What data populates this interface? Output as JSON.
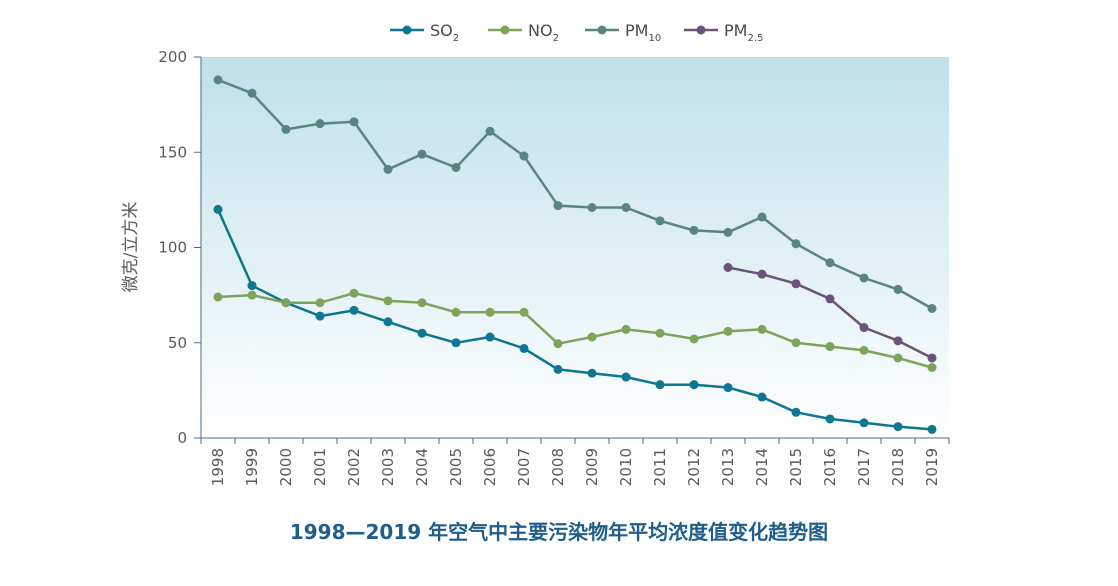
{
  "chart_data": {
    "type": "line",
    "title": "1998—2019 年空气中主要污染物年平均浓度值变化趋势图",
    "xlabel": "",
    "ylabel": "微克/立方米",
    "ylim": [
      0,
      200
    ],
    "yticks": [
      0,
      50,
      100,
      150,
      200
    ],
    "x": [
      1998,
      1999,
      2000,
      2001,
      2002,
      2003,
      2004,
      2005,
      2006,
      2007,
      2008,
      2009,
      2010,
      2011,
      2012,
      2013,
      2014,
      2015,
      2016,
      2017,
      2018,
      2019
    ],
    "legend_position": "top-center",
    "series": [
      {
        "name": "SO",
        "sub": "2",
        "color": "#0e7691",
        "values": [
          120,
          80,
          71,
          64,
          67,
          61,
          55,
          50,
          53,
          47,
          36,
          34,
          32,
          28,
          28,
          26.5,
          21.5,
          13.5,
          10,
          8,
          6,
          4.5
        ]
      },
      {
        "name": "NO",
        "sub": "2",
        "color": "#7ca45a",
        "values": [
          74,
          75,
          71,
          71,
          76,
          72,
          71,
          66,
          66,
          66,
          49.5,
          53,
          57,
          55,
          52,
          56,
          57,
          50,
          48,
          46,
          42,
          37
        ]
      },
      {
        "name": "PM",
        "sub": "10",
        "color": "#5a847f",
        "values": [
          188,
          181,
          162,
          165,
          166,
          141,
          149,
          142,
          161,
          148,
          122,
          121,
          121,
          114,
          109,
          108,
          116,
          102,
          92,
          84,
          78,
          68
        ]
      },
      {
        "name": "PM",
        "sub": "2.5",
        "color": "#6a5478",
        "values": [
          null,
          null,
          null,
          null,
          null,
          null,
          null,
          null,
          null,
          null,
          null,
          null,
          null,
          null,
          null,
          89.5,
          86,
          81,
          73,
          58,
          51,
          42
        ]
      }
    ],
    "colors": {
      "plot_top": "#bfe0ea",
      "plot_bottom": "#ffffff",
      "axis": "#4a6a8a",
      "title": "#1f5d8a"
    }
  }
}
